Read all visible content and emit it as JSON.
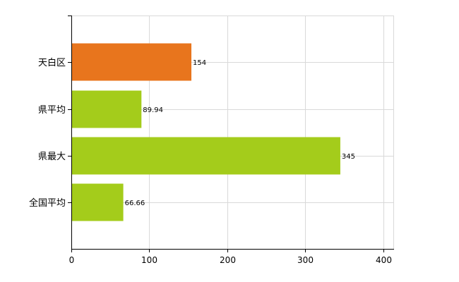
{
  "chart_data": {
    "type": "bar",
    "orientation": "horizontal",
    "categories": [
      "天白区",
      "県平均",
      "県最大",
      "全国平均"
    ],
    "values": [
      154,
      89.94,
      345,
      66.66
    ],
    "value_labels": [
      "154",
      "89.94",
      "345",
      "66.66"
    ],
    "bar_colors": [
      "#e8751d",
      "#a4cc1b",
      "#a4cc1b",
      "#a4cc1b"
    ],
    "x_ticks": [
      0,
      100,
      200,
      300,
      400
    ],
    "x_tick_labels": [
      "0",
      "100",
      "200",
      "300",
      "400"
    ],
    "xlim": [
      0,
      413
    ],
    "grid": true,
    "title": "",
    "xlabel": "",
    "ylabel": ""
  }
}
